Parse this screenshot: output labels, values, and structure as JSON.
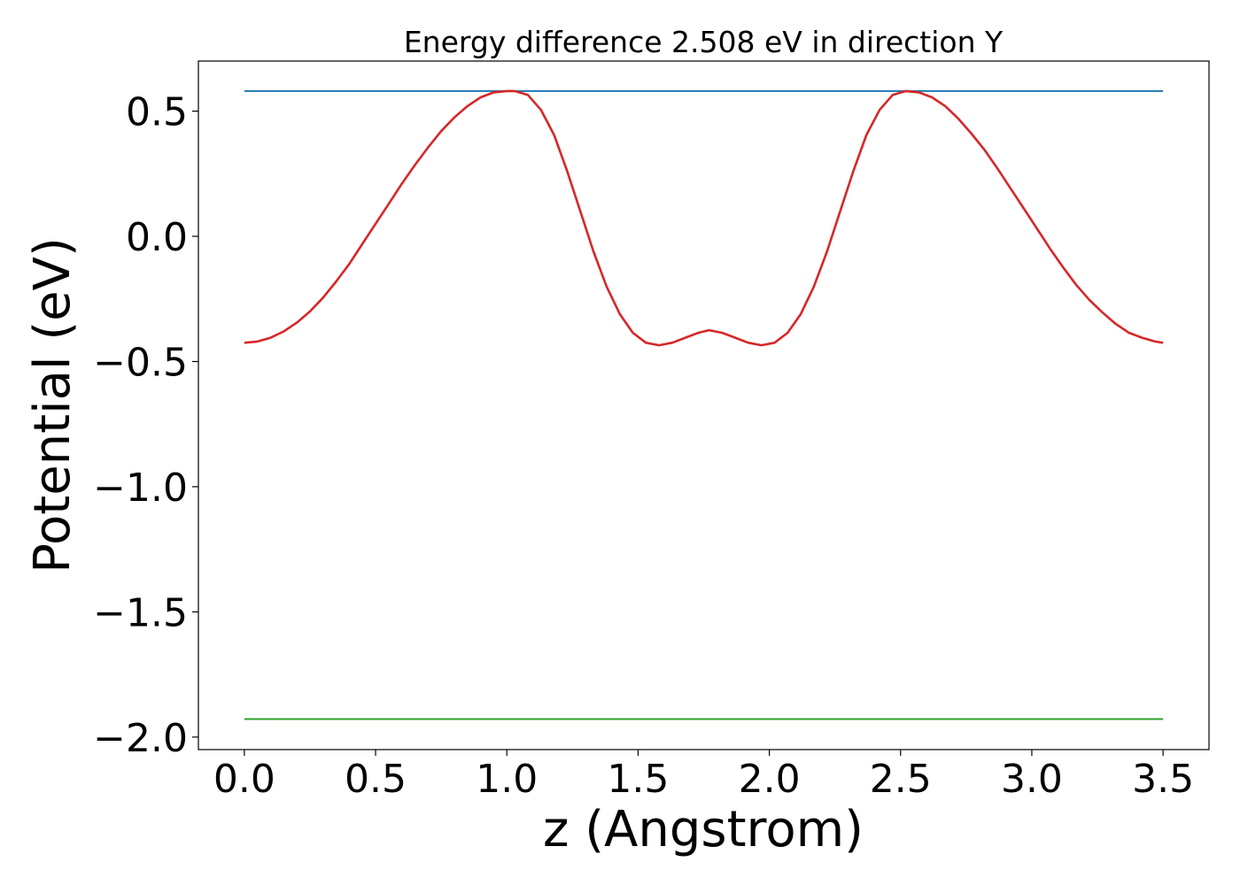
{
  "chart_data": {
    "type": "line",
    "title": "Energy difference 2.508 eV in direction Y",
    "xlabel": "z (Angstrom)",
    "ylabel": "Potential (eV)",
    "xlim": [
      -0.175,
      3.675
    ],
    "ylim": [
      -2.05,
      0.7
    ],
    "xticks": [
      0.0,
      0.5,
      1.0,
      1.5,
      2.0,
      2.5,
      3.0,
      3.5
    ],
    "xtick_labels": [
      "0.0",
      "0.5",
      "1.0",
      "1.5",
      "2.0",
      "2.5",
      "3.0",
      "3.5"
    ],
    "yticks": [
      0.5,
      0.0,
      -0.5,
      -1.0,
      -1.5,
      -2.0
    ],
    "ytick_labels": [
      "0.5",
      "0.0",
      "−0.5",
      "−1.0",
      "−1.5",
      "−2.0"
    ],
    "grid": false,
    "series": [
      {
        "color": "#1f77b4",
        "x": [
          0.0,
          3.5
        ],
        "y": [
          0.58,
          0.58
        ]
      },
      {
        "color": "#2ca02c",
        "x": [
          0.0,
          3.5
        ],
        "y": [
          -1.928,
          -1.928
        ]
      },
      {
        "color": "#d62728",
        "x": [
          0.0,
          0.05,
          0.1,
          0.15,
          0.2,
          0.25,
          0.3,
          0.35,
          0.4,
          0.45,
          0.5,
          0.55,
          0.6,
          0.65,
          0.7,
          0.75,
          0.8,
          0.85,
          0.9,
          0.95,
          1.0,
          1.03,
          1.08,
          1.13,
          1.18,
          1.23,
          1.28,
          1.33,
          1.38,
          1.43,
          1.48,
          1.53,
          1.58,
          1.63,
          1.68,
          1.73,
          1.77,
          1.82,
          1.87,
          1.92,
          1.97,
          2.02,
          2.07,
          2.12,
          2.17,
          2.22,
          2.27,
          2.32,
          2.37,
          2.42,
          2.47,
          2.52,
          2.57,
          2.62,
          2.67,
          2.72,
          2.77,
          2.82,
          2.87,
          2.92,
          2.97,
          3.02,
          3.07,
          3.12,
          3.17,
          3.22,
          3.27,
          3.32,
          3.37,
          3.42,
          3.47,
          3.5
        ],
        "y": [
          -0.425,
          -0.42,
          -0.405,
          -0.38,
          -0.345,
          -0.3,
          -0.245,
          -0.18,
          -0.11,
          -0.03,
          0.05,
          0.13,
          0.21,
          0.285,
          0.355,
          0.42,
          0.475,
          0.52,
          0.555,
          0.575,
          0.58,
          0.58,
          0.565,
          0.505,
          0.405,
          0.26,
          0.1,
          -0.06,
          -0.2,
          -0.31,
          -0.385,
          -0.425,
          -0.435,
          -0.425,
          -0.405,
          -0.385,
          -0.375,
          -0.385,
          -0.405,
          -0.425,
          -0.435,
          -0.425,
          -0.385,
          -0.31,
          -0.2,
          -0.06,
          0.1,
          0.26,
          0.405,
          0.505,
          0.565,
          0.58,
          0.575,
          0.555,
          0.52,
          0.47,
          0.41,
          0.345,
          0.27,
          0.19,
          0.11,
          0.03,
          -0.05,
          -0.125,
          -0.195,
          -0.255,
          -0.305,
          -0.35,
          -0.385,
          -0.405,
          -0.42,
          -0.425
        ]
      }
    ]
  }
}
